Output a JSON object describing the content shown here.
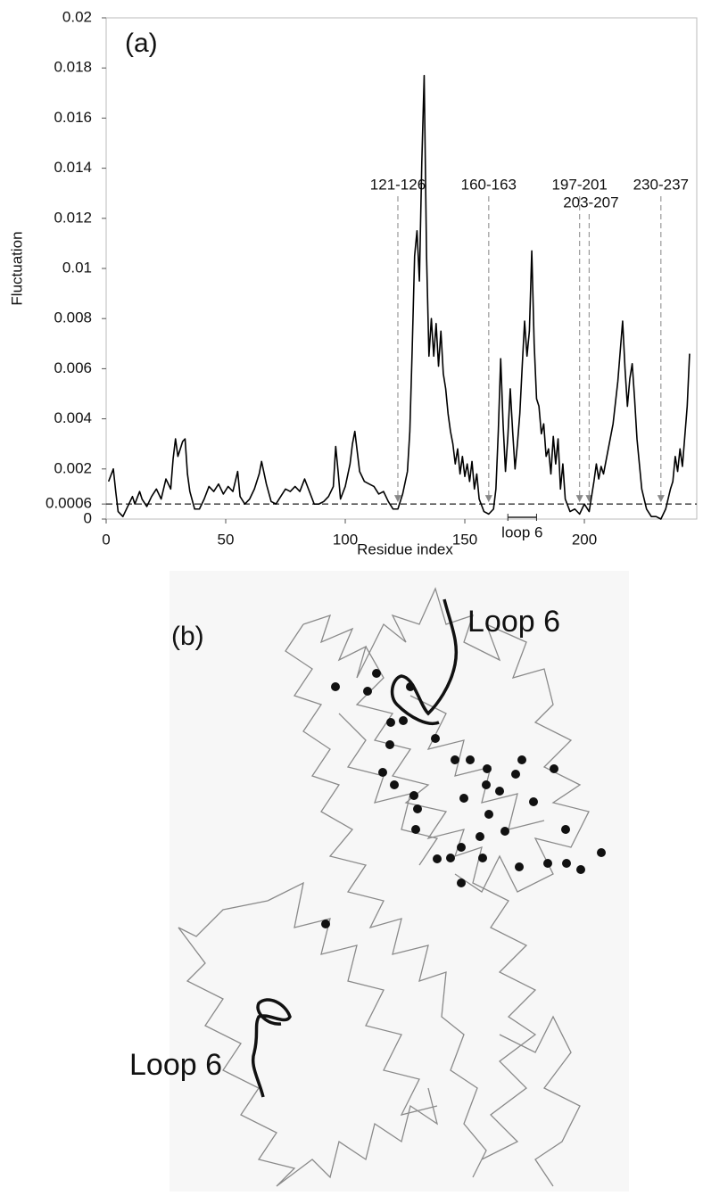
{
  "chart_data": {
    "type": "line",
    "label": "(a)",
    "xlabel": "Residue index",
    "ylabel": "Fluctuation",
    "xlim": [
      0,
      247
    ],
    "ylim": [
      0,
      0.02
    ],
    "xticks": [
      0,
      50,
      100,
      150,
      200
    ],
    "yticks": [
      0,
      0.0006,
      0.002,
      0.004,
      0.006,
      0.008,
      0.01,
      0.012,
      0.014,
      0.016,
      0.018,
      0.02
    ],
    "threshold": 0.0006,
    "annotations": [
      {
        "text": "121-126",
        "x": 122
      },
      {
        "text": "160-163",
        "x": 160
      },
      {
        "text": "197-201",
        "x": 198
      },
      {
        "text": "203-207",
        "x": 202
      },
      {
        "text": "230-237",
        "x": 232
      }
    ],
    "bracket": {
      "text": "loop 6",
      "from": 168,
      "to": 180
    },
    "series": [
      {
        "color": "#000000",
        "x": [
          1,
          3,
          4,
          5,
          7,
          9,
          11,
          12,
          14,
          15,
          17,
          19,
          21,
          23,
          25,
          27,
          28,
          29,
          30,
          31,
          32,
          33,
          34,
          35,
          37,
          39,
          41,
          43,
          45,
          47,
          49,
          51,
          53,
          55,
          56,
          58,
          60,
          62,
          64,
          65,
          67,
          69,
          71,
          73,
          75,
          77,
          79,
          81,
          83,
          85,
          87,
          89,
          91,
          93,
          95,
          96,
          97,
          98,
          100,
          102,
          103,
          104,
          105,
          106,
          108,
          110,
          112,
          114,
          116,
          118,
          120,
          122,
          124,
          126,
          127,
          128,
          129,
          130,
          131,
          132,
          133,
          134,
          135,
          136,
          137,
          138,
          139,
          140,
          141,
          142,
          143,
          144,
          145,
          146,
          147,
          148,
          149,
          150,
          151,
          152,
          153,
          154,
          155,
          156,
          158,
          160,
          162,
          163,
          164,
          165,
          166,
          167,
          168,
          169,
          170,
          171,
          172,
          173,
          174,
          175,
          176,
          177,
          178,
          179,
          180,
          181,
          182,
          183,
          184,
          185,
          186,
          187,
          188,
          189,
          190,
          191,
          192,
          194,
          196,
          198,
          200,
          202,
          204,
          205,
          206,
          207,
          208,
          210,
          212,
          214,
          216,
          217,
          218,
          219,
          220,
          221,
          222,
          223,
          224,
          226,
          228,
          230,
          232,
          234,
          236,
          237,
          238,
          239,
          240,
          241,
          242,
          243,
          244
        ],
        "values": [
          0.0015,
          0.002,
          0.0011,
          0.0003,
          0.0001,
          0.0005,
          0.0009,
          0.0006,
          0.0011,
          0.0008,
          0.0005,
          0.0009,
          0.0012,
          0.0008,
          0.0016,
          0.0012,
          0.0024,
          0.0032,
          0.0025,
          0.0028,
          0.0031,
          0.0032,
          0.0018,
          0.0011,
          0.0004,
          0.0004,
          0.0008,
          0.0013,
          0.0011,
          0.0014,
          0.001,
          0.0013,
          0.0011,
          0.0019,
          0.0009,
          0.0006,
          0.0008,
          0.0012,
          0.0018,
          0.0023,
          0.0014,
          0.0007,
          0.0006,
          0.0009,
          0.0012,
          0.0011,
          0.0013,
          0.0011,
          0.0016,
          0.0011,
          0.0006,
          0.0006,
          0.0007,
          0.0009,
          0.0013,
          0.0029,
          0.0019,
          0.0008,
          0.0013,
          0.0022,
          0.003,
          0.0035,
          0.0027,
          0.0019,
          0.0015,
          0.0014,
          0.0013,
          0.001,
          0.0011,
          0.0007,
          0.0004,
          0.0004,
          0.001,
          0.0019,
          0.0035,
          0.0068,
          0.0105,
          0.0115,
          0.0095,
          0.0142,
          0.0177,
          0.0105,
          0.0065,
          0.008,
          0.0065,
          0.0078,
          0.0061,
          0.0075,
          0.0058,
          0.0052,
          0.0042,
          0.0035,
          0.003,
          0.0022,
          0.0028,
          0.0018,
          0.0025,
          0.0017,
          0.0022,
          0.0015,
          0.0023,
          0.0012,
          0.0018,
          0.0008,
          0.0003,
          0.0002,
          0.0004,
          0.0012,
          0.0035,
          0.0064,
          0.0038,
          0.0019,
          0.0033,
          0.0052,
          0.0035,
          0.002,
          0.003,
          0.0042,
          0.0061,
          0.0079,
          0.0065,
          0.0075,
          0.0107,
          0.007,
          0.0048,
          0.0045,
          0.0034,
          0.0038,
          0.0025,
          0.0028,
          0.0018,
          0.0033,
          0.0022,
          0.0032,
          0.0012,
          0.0022,
          0.0008,
          0.0003,
          0.0004,
          0.0002,
          0.0006,
          0.0003,
          0.0015,
          0.0022,
          0.0016,
          0.0021,
          0.0018,
          0.0028,
          0.0038,
          0.0055,
          0.0079,
          0.006,
          0.0045,
          0.0056,
          0.0062,
          0.0048,
          0.0032,
          0.0022,
          0.0012,
          0.0004,
          0.0001,
          0.0001,
          0,
          0.0004,
          0.0012,
          0.0015,
          0.0025,
          0.0019,
          0.0028,
          0.0021,
          0.0033,
          0.0045,
          0.0066
        ]
      }
    ]
  },
  "panel_b": {
    "label": "(b)",
    "loop_top": "Loop 6",
    "loop_bottom": "Loop 6"
  }
}
